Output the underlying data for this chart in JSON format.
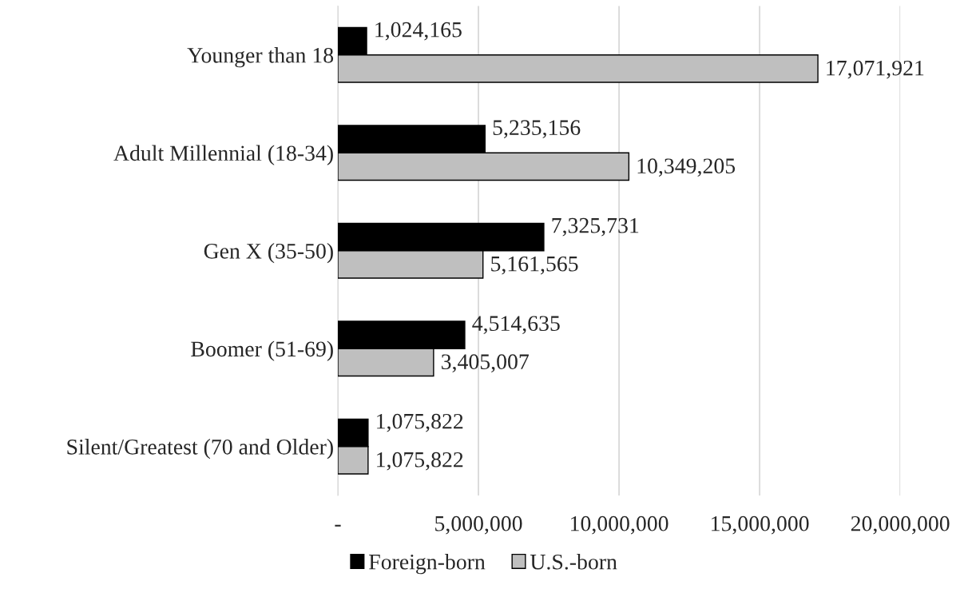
{
  "chart_data": {
    "type": "bar",
    "orientation": "horizontal",
    "categories": [
      "Younger than 18",
      "Adult Millennial (18-34)",
      "Gen X (35-50)",
      "Boomer (51-69)",
      "Silent/Greatest (70 and Older)"
    ],
    "series": [
      {
        "name": "Foreign-born",
        "color": "#000000",
        "values": [
          1024165,
          5235156,
          7325731,
          4514635,
          1075822
        ],
        "value_labels": [
          "1,024,165",
          "5,235,156",
          "7,325,731",
          "4,514,635",
          "1,075,822"
        ]
      },
      {
        "name": "U.S.-born",
        "color": "#bfbfbf",
        "values": [
          17071921,
          10349205,
          5161565,
          3405007,
          1075822
        ],
        "value_labels": [
          "17,071,921",
          "10,349,205",
          "5,161,565",
          "3,405,007",
          "1,075,822"
        ]
      }
    ],
    "xlim": [
      0,
      20000000
    ],
    "xticks": [
      {
        "value": 0,
        "label": "-"
      },
      {
        "value": 5000000,
        "label": "5,000,000"
      },
      {
        "value": 10000000,
        "label": "10,000,000"
      },
      {
        "value": 15000000,
        "label": "15,000,000"
      },
      {
        "value": 20000000,
        "label": "20,000,000"
      }
    ],
    "grid": "x",
    "legend": "bottom"
  }
}
